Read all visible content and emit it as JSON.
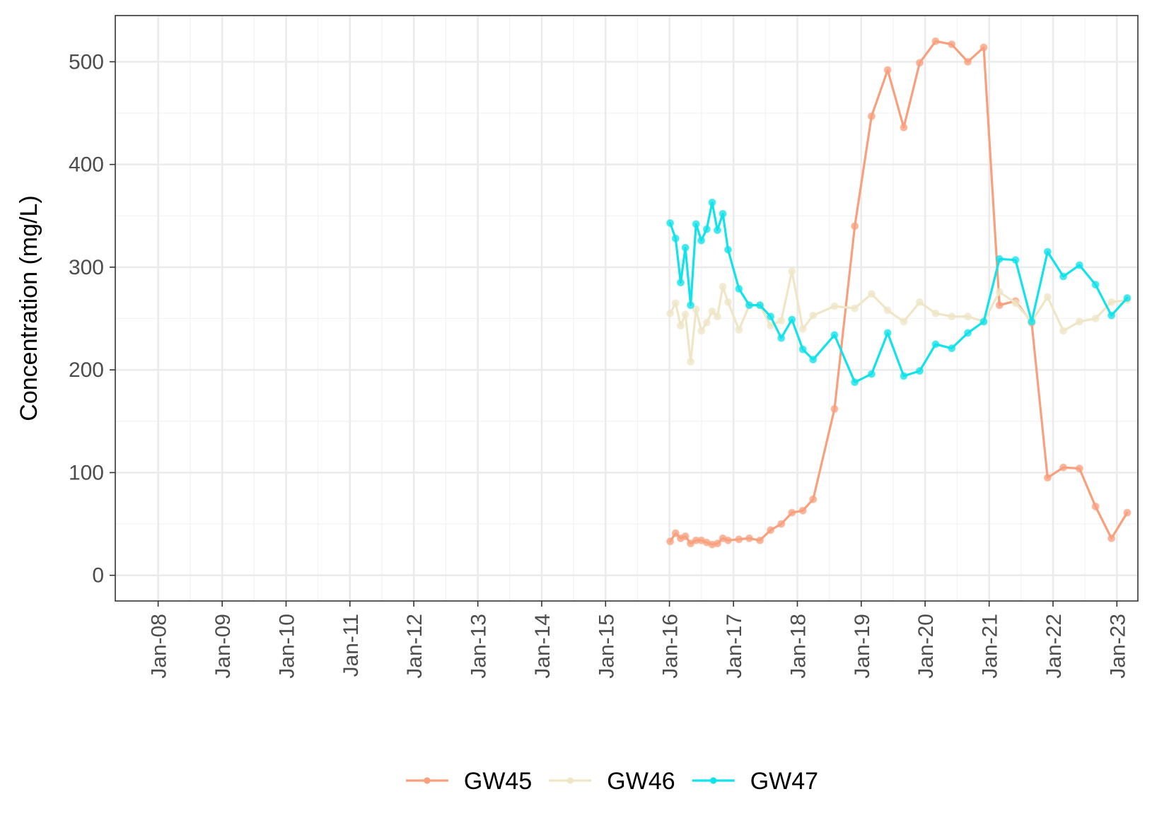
{
  "chart_data": {
    "type": "line",
    "xlabel": "",
    "ylabel": "Concentration (mg/L)",
    "xlim": [
      "2007-05-01",
      "2023-05-01"
    ],
    "ylim": [
      -25,
      545
    ],
    "grid": true,
    "legend_position": "bottom",
    "x_ticks": [
      {
        "date": "2008-01-01",
        "label": "Jan-08"
      },
      {
        "date": "2009-01-01",
        "label": "Jan-09"
      },
      {
        "date": "2010-01-01",
        "label": "Jan-10"
      },
      {
        "date": "2011-01-01",
        "label": "Jan-11"
      },
      {
        "date": "2012-01-01",
        "label": "Jan-12"
      },
      {
        "date": "2013-01-01",
        "label": "Jan-13"
      },
      {
        "date": "2014-01-01",
        "label": "Jan-14"
      },
      {
        "date": "2015-01-01",
        "label": "Jan-15"
      },
      {
        "date": "2016-01-01",
        "label": "Jan-16"
      },
      {
        "date": "2017-01-01",
        "label": "Jan-17"
      },
      {
        "date": "2018-01-01",
        "label": "Jan-18"
      },
      {
        "date": "2019-01-01",
        "label": "Jan-19"
      },
      {
        "date": "2020-01-01",
        "label": "Jan-20"
      },
      {
        "date": "2021-01-01",
        "label": "Jan-21"
      },
      {
        "date": "2022-01-01",
        "label": "Jan-22"
      },
      {
        "date": "2023-01-01",
        "label": "Jan-23"
      }
    ],
    "y_ticks": [
      0,
      100,
      200,
      300,
      400,
      500
    ],
    "series": [
      {
        "name": "GW45",
        "color": "#f8a07e",
        "points": [
          {
            "x": "2016-01-05",
            "y": 33
          },
          {
            "x": "2016-02-05",
            "y": 41
          },
          {
            "x": "2016-03-05",
            "y": 36
          },
          {
            "x": "2016-04-01",
            "y": 38
          },
          {
            "x": "2016-05-01",
            "y": 31
          },
          {
            "x": "2016-06-01",
            "y": 34
          },
          {
            "x": "2016-07-01",
            "y": 34
          },
          {
            "x": "2016-08-01",
            "y": 32
          },
          {
            "x": "2016-09-01",
            "y": 30
          },
          {
            "x": "2016-10-01",
            "y": 31
          },
          {
            "x": "2016-11-01",
            "y": 36
          },
          {
            "x": "2016-12-01",
            "y": 34
          },
          {
            "x": "2017-02-01",
            "y": 35
          },
          {
            "x": "2017-04-01",
            "y": 36
          },
          {
            "x": "2017-06-01",
            "y": 34
          },
          {
            "x": "2017-08-01",
            "y": 44
          },
          {
            "x": "2017-10-01",
            "y": 50
          },
          {
            "x": "2017-12-01",
            "y": 61
          },
          {
            "x": "2018-02-01",
            "y": 63
          },
          {
            "x": "2018-04-01",
            "y": 74
          },
          {
            "x": "2018-08-01",
            "y": 162
          },
          {
            "x": "2018-11-25",
            "y": 340
          },
          {
            "x": "2019-03-01",
            "y": 447
          },
          {
            "x": "2019-06-01",
            "y": 492
          },
          {
            "x": "2019-09-01",
            "y": 436
          },
          {
            "x": "2019-12-01",
            "y": 499
          },
          {
            "x": "2020-03-01",
            "y": 520
          },
          {
            "x": "2020-06-01",
            "y": 517
          },
          {
            "x": "2020-09-01",
            "y": 500
          },
          {
            "x": "2020-12-01",
            "y": 514
          },
          {
            "x": "2021-03-01",
            "y": 263
          },
          {
            "x": "2021-06-01",
            "y": 267
          },
          {
            "x": "2021-09-01",
            "y": 246
          },
          {
            "x": "2021-12-01",
            "y": 95
          },
          {
            "x": "2022-03-01",
            "y": 105
          },
          {
            "x": "2022-06-01",
            "y": 104
          },
          {
            "x": "2022-09-01",
            "y": 67
          },
          {
            "x": "2022-12-01",
            "y": 36
          },
          {
            "x": "2023-03-01",
            "y": 61
          }
        ]
      },
      {
        "name": "GW46",
        "color": "#eee6c6",
        "points": [
          {
            "x": "2016-01-05",
            "y": 255
          },
          {
            "x": "2016-02-05",
            "y": 265
          },
          {
            "x": "2016-03-05",
            "y": 243
          },
          {
            "x": "2016-04-01",
            "y": 254
          },
          {
            "x": "2016-05-01",
            "y": 208
          },
          {
            "x": "2016-06-01",
            "y": 259
          },
          {
            "x": "2016-07-01",
            "y": 238
          },
          {
            "x": "2016-08-01",
            "y": 246
          },
          {
            "x": "2016-09-01",
            "y": 257
          },
          {
            "x": "2016-10-01",
            "y": 252
          },
          {
            "x": "2016-11-01",
            "y": 281
          },
          {
            "x": "2016-12-01",
            "y": 266
          },
          {
            "x": "2017-02-01",
            "y": 239
          },
          {
            "x": "2017-04-01",
            "y": 263
          },
          {
            "x": "2017-06-01",
            "y": 263
          },
          {
            "x": "2017-08-01",
            "y": 243
          },
          {
            "x": "2017-10-01",
            "y": 248
          },
          {
            "x": "2017-12-01",
            "y": 296
          },
          {
            "x": "2018-02-01",
            "y": 240
          },
          {
            "x": "2018-04-01",
            "y": 253
          },
          {
            "x": "2018-08-01",
            "y": 262
          },
          {
            "x": "2018-11-25",
            "y": 260
          },
          {
            "x": "2019-03-01",
            "y": 274
          },
          {
            "x": "2019-06-01",
            "y": 258
          },
          {
            "x": "2019-09-01",
            "y": 247
          },
          {
            "x": "2019-12-01",
            "y": 266
          },
          {
            "x": "2020-03-01",
            "y": 255
          },
          {
            "x": "2020-06-01",
            "y": 252
          },
          {
            "x": "2020-09-01",
            "y": 252
          },
          {
            "x": "2020-12-01",
            "y": 247
          },
          {
            "x": "2021-03-01",
            "y": 276
          },
          {
            "x": "2021-06-01",
            "y": 265
          },
          {
            "x": "2021-09-01",
            "y": 247
          },
          {
            "x": "2021-12-01",
            "y": 271
          },
          {
            "x": "2022-03-01",
            "y": 238
          },
          {
            "x": "2022-06-01",
            "y": 247
          },
          {
            "x": "2022-09-01",
            "y": 250
          },
          {
            "x": "2022-12-01",
            "y": 266
          },
          {
            "x": "2023-03-01",
            "y": 268
          }
        ]
      },
      {
        "name": "GW47",
        "color": "#12e2e9",
        "points": [
          {
            "x": "2016-01-05",
            "y": 343
          },
          {
            "x": "2016-02-05",
            "y": 328
          },
          {
            "x": "2016-03-05",
            "y": 285
          },
          {
            "x": "2016-04-01",
            "y": 319
          },
          {
            "x": "2016-05-01",
            "y": 263
          },
          {
            "x": "2016-06-01",
            "y": 342
          },
          {
            "x": "2016-07-01",
            "y": 326
          },
          {
            "x": "2016-08-01",
            "y": 337
          },
          {
            "x": "2016-09-01",
            "y": 363
          },
          {
            "x": "2016-10-01",
            "y": 336
          },
          {
            "x": "2016-11-01",
            "y": 352
          },
          {
            "x": "2016-12-01",
            "y": 317
          },
          {
            "x": "2017-02-01",
            "y": 279
          },
          {
            "x": "2017-04-01",
            "y": 263
          },
          {
            "x": "2017-06-01",
            "y": 263
          },
          {
            "x": "2017-08-01",
            "y": 252
          },
          {
            "x": "2017-10-01",
            "y": 231
          },
          {
            "x": "2017-12-01",
            "y": 249
          },
          {
            "x": "2018-02-01",
            "y": 220
          },
          {
            "x": "2018-04-01",
            "y": 210
          },
          {
            "x": "2018-08-01",
            "y": 234
          },
          {
            "x": "2018-11-25",
            "y": 188
          },
          {
            "x": "2019-03-01",
            "y": 196
          },
          {
            "x": "2019-06-01",
            "y": 236
          },
          {
            "x": "2019-09-01",
            "y": 194
          },
          {
            "x": "2019-12-01",
            "y": 199
          },
          {
            "x": "2020-03-01",
            "y": 225
          },
          {
            "x": "2020-06-01",
            "y": 221
          },
          {
            "x": "2020-09-01",
            "y": 236
          },
          {
            "x": "2020-12-01",
            "y": 247
          },
          {
            "x": "2021-03-01",
            "y": 308
          },
          {
            "x": "2021-06-01",
            "y": 307
          },
          {
            "x": "2021-09-01",
            "y": 247
          },
          {
            "x": "2021-12-01",
            "y": 315
          },
          {
            "x": "2022-03-01",
            "y": 291
          },
          {
            "x": "2022-06-01",
            "y": 302
          },
          {
            "x": "2022-09-01",
            "y": 283
          },
          {
            "x": "2022-12-01",
            "y": 253
          },
          {
            "x": "2023-03-01",
            "y": 270
          }
        ]
      }
    ]
  }
}
